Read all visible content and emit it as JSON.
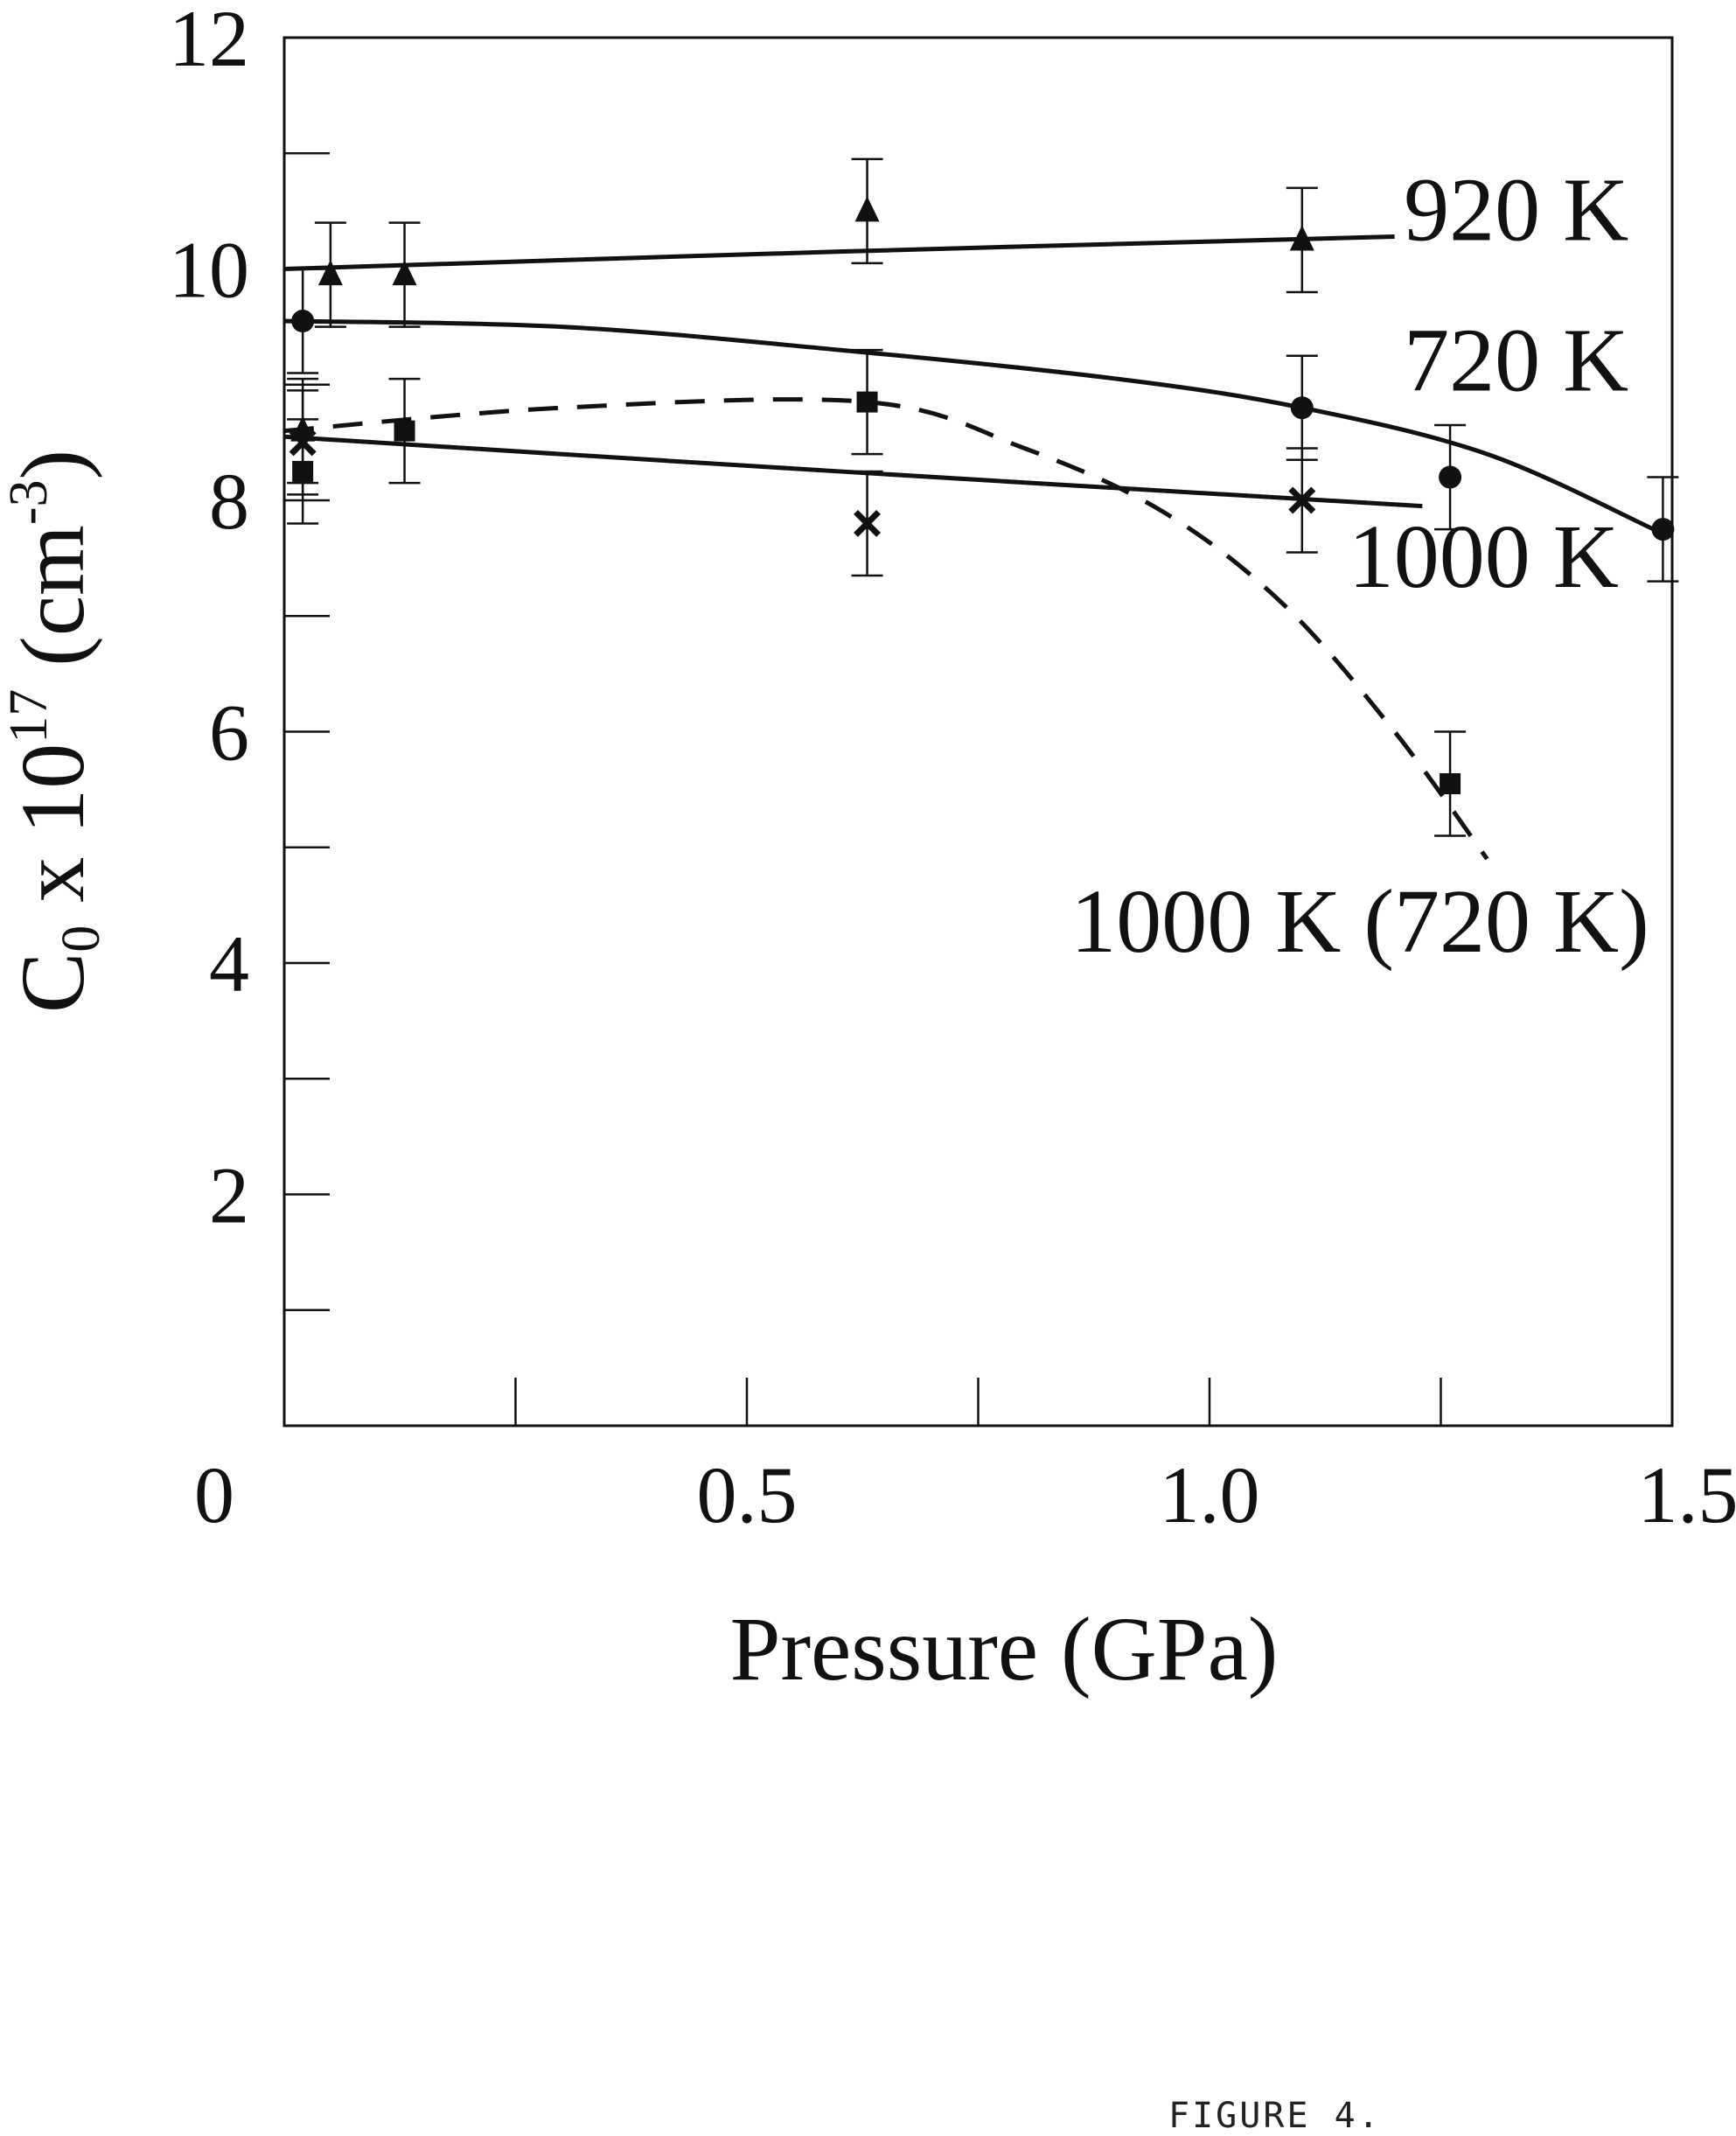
{
  "caption": "FIGURE 4.",
  "chart_data": {
    "type": "scatter",
    "xlabel": "Pressure (GPa)",
    "ylabel": "C0 x 10^17 (cm^-3)",
    "ylabel_parts": {
      "base": "C",
      "sub": "0",
      "mid": " x 10",
      "sup": "17",
      "unit_open": " (cm",
      "unit_sup": "-3",
      "unit_close": ")"
    },
    "xlim": [
      0,
      1.5
    ],
    "ylim": [
      0,
      12
    ],
    "x_tick_labels": [
      {
        "value": 0,
        "label": "0"
      },
      {
        "value": 0.5,
        "label": "0.5"
      },
      {
        "value": 1.0,
        "label": "1.0"
      },
      {
        "value": 1.5,
        "label": "1.5"
      }
    ],
    "x_minor_ticks": [
      0.25,
      0.5,
      0.75,
      1.0,
      1.25
    ],
    "y_tick_labels": [
      {
        "value": 2,
        "label": "2"
      },
      {
        "value": 4,
        "label": "4"
      },
      {
        "value": 6,
        "label": "6"
      },
      {
        "value": 8,
        "label": "8"
      },
      {
        "value": 10,
        "label": "10"
      },
      {
        "value": 12,
        "label": "12"
      }
    ],
    "y_minor_ticks": [
      1,
      2,
      3,
      4,
      5,
      6,
      7,
      8,
      9,
      10,
      11
    ],
    "grid": false,
    "series": [
      {
        "name": "920 K",
        "marker": "triangle",
        "line": "solid",
        "points": [
          {
            "x": 0.02,
            "y": 8.6,
            "err": 0.45
          },
          {
            "x": 0.05,
            "y": 9.95,
            "err": 0.45
          },
          {
            "x": 0.13,
            "y": 9.95,
            "err": 0.45
          },
          {
            "x": 0.63,
            "y": 10.5,
            "err": 0.45
          },
          {
            "x": 1.1,
            "y": 10.25,
            "err": 0.45
          }
        ],
        "curve": [
          [
            0.0,
            10.0
          ],
          [
            0.6,
            10.15
          ],
          [
            1.2,
            10.28
          ]
        ],
        "label_at": {
          "x": 1.21,
          "y": 10.25
        }
      },
      {
        "name": "720 K",
        "marker": "circle",
        "line": "solid",
        "points": [
          {
            "x": 0.02,
            "y": 9.55,
            "err": 0.45
          },
          {
            "x": 1.1,
            "y": 8.8,
            "err": 0.45
          },
          {
            "x": 1.26,
            "y": 8.2,
            "err": 0.45
          },
          {
            "x": 1.49,
            "y": 7.75,
            "err": 0.45
          }
        ],
        "curve": [
          [
            0.0,
            9.55
          ],
          [
            0.3,
            9.5
          ],
          [
            0.6,
            9.3
          ],
          [
            0.9,
            9.05
          ],
          [
            1.1,
            8.8
          ],
          [
            1.3,
            8.4
          ],
          [
            1.48,
            7.75
          ]
        ],
        "label_at": {
          "x": 1.21,
          "y": 8.95
        }
      },
      {
        "name": "1000 K",
        "marker": "x",
        "line": "solid",
        "points": [
          {
            "x": 0.02,
            "y": 8.5,
            "err": 0.45
          },
          {
            "x": 0.63,
            "y": 7.8,
            "err": 0.45
          },
          {
            "x": 1.1,
            "y": 8.0,
            "err": 0.45
          }
        ],
        "curve": [
          [
            0.0,
            8.55
          ],
          [
            0.6,
            8.25
          ],
          [
            1.23,
            7.95
          ]
        ],
        "label_at": {
          "x": 1.15,
          "y": 7.25
        }
      },
      {
        "name": "1000 K (720 K)",
        "marker": "square",
        "line": "dashed",
        "points": [
          {
            "x": 0.02,
            "y": 8.25,
            "err": 0.45
          },
          {
            "x": 0.13,
            "y": 8.6,
            "err": 0.45
          },
          {
            "x": 0.63,
            "y": 8.85,
            "err": 0.45
          },
          {
            "x": 1.26,
            "y": 5.55,
            "err": 0.45
          }
        ],
        "curve": [
          [
            0.0,
            8.6
          ],
          [
            0.3,
            8.8
          ],
          [
            0.63,
            8.85
          ],
          [
            0.8,
            8.45
          ],
          [
            0.95,
            7.9
          ],
          [
            1.08,
            7.1
          ],
          [
            1.2,
            6.0
          ],
          [
            1.3,
            4.9
          ]
        ],
        "label_at": {
          "x": 0.85,
          "y": 4.1
        }
      }
    ]
  }
}
